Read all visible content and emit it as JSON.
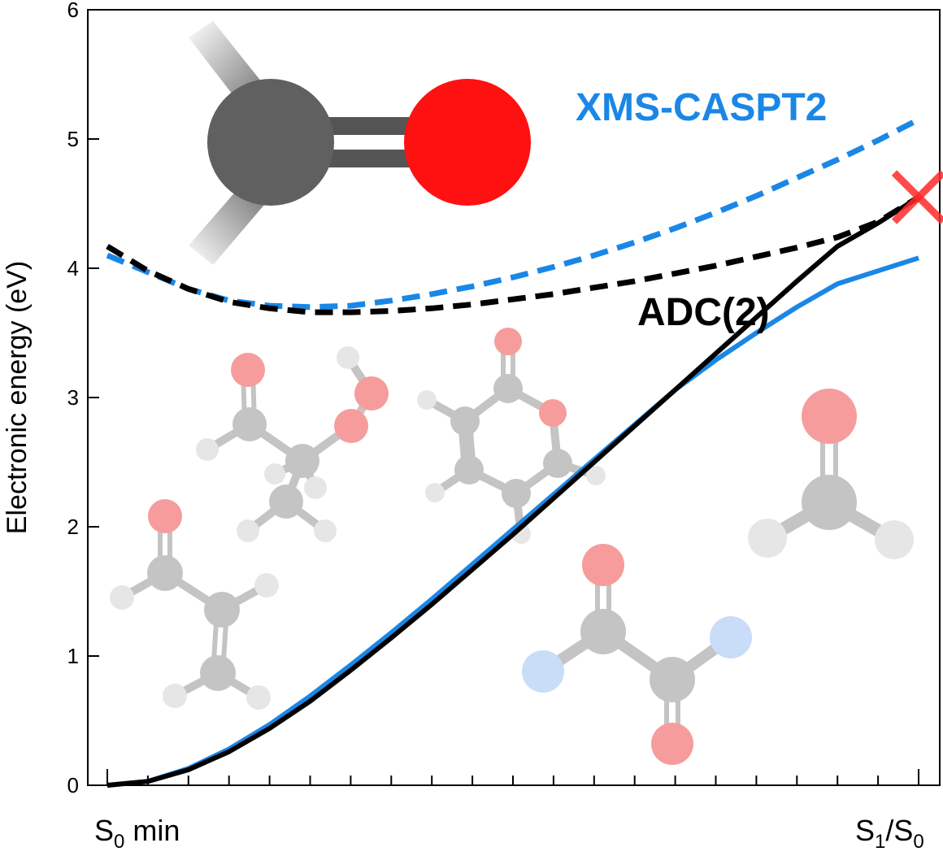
{
  "colors": {
    "xms": "#1a87e6",
    "adc": "#000000",
    "crossing": "#ff2a2a",
    "carbon_dark": "#5f5f5f",
    "oxygen_red": "#ff1111",
    "faded_carbon": "#c4c4c4",
    "faded_hydrogen": "#e6e6e6",
    "faded_oxygen": "#f69c9c",
    "faded_nitrogen": "#c9dcf8"
  },
  "chart_data": {
    "type": "line",
    "ylabel": "Electronic energy (eV)",
    "ylim": [
      0,
      6
    ],
    "yticks": [
      "0",
      "1",
      "2",
      "3",
      "4",
      "5",
      "6"
    ],
    "x_start_label": {
      "main": "S",
      "sub": "0",
      "rest": " min"
    },
    "x_end_label": {
      "a": "S",
      "a_sub": "1",
      "sep": "/",
      "b": "S",
      "b_sub": "0"
    },
    "xlim": [
      0,
      1
    ],
    "annotations": {
      "xms": "XMS-CASPT2",
      "adc": "ADC(2)"
    },
    "crossing_point": {
      "x": 1.0,
      "y": 4.55
    },
    "series": [
      {
        "name": "XMS-CASPT2",
        "style": "dashed",
        "color": "#1a87e6",
        "x": [
          0,
          0.05,
          0.1,
          0.15,
          0.2,
          0.25,
          0.3,
          0.35,
          0.4,
          0.45,
          0.5,
          0.55,
          0.6,
          0.65,
          0.7,
          0.75,
          0.8,
          0.85,
          0.9,
          0.95,
          1.0
        ],
        "y": [
          4.1,
          3.97,
          3.84,
          3.75,
          3.71,
          3.7,
          3.71,
          3.75,
          3.8,
          3.86,
          3.93,
          4.01,
          4.1,
          4.2,
          4.31,
          4.43,
          4.56,
          4.7,
          4.84,
          4.99,
          5.15
        ]
      },
      {
        "name": "ADC(2)",
        "style": "dashed",
        "color": "#000000",
        "x": [
          0,
          0.05,
          0.1,
          0.15,
          0.2,
          0.25,
          0.3,
          0.35,
          0.4,
          0.45,
          0.5,
          0.55,
          0.6,
          0.65,
          0.7,
          0.75,
          0.8,
          0.85,
          0.9,
          0.95,
          1.0
        ],
        "y": [
          4.17,
          3.98,
          3.84,
          3.74,
          3.69,
          3.66,
          3.66,
          3.67,
          3.69,
          3.72,
          3.76,
          3.8,
          3.85,
          3.9,
          3.96,
          4.02,
          4.09,
          4.16,
          4.24,
          4.36,
          4.55
        ]
      },
      {
        "name": "XMS-CASPT2",
        "style": "solid",
        "color": "#1a87e6",
        "x": [
          0,
          0.05,
          0.1,
          0.15,
          0.2,
          0.25,
          0.3,
          0.35,
          0.4,
          0.45,
          0.5,
          0.55,
          0.6,
          0.65,
          0.7,
          0.75,
          0.8,
          0.85,
          0.9,
          0.95,
          1.0
        ],
        "y": [
          0.0,
          0.03,
          0.13,
          0.28,
          0.47,
          0.69,
          0.93,
          1.18,
          1.44,
          1.71,
          1.98,
          2.25,
          2.52,
          2.79,
          3.06,
          3.29,
          3.5,
          3.7,
          3.88,
          3.98,
          4.08
        ]
      },
      {
        "name": "ADC(2)",
        "style": "solid",
        "color": "#000000",
        "x": [
          0,
          0.05,
          0.1,
          0.15,
          0.2,
          0.25,
          0.3,
          0.35,
          0.4,
          0.45,
          0.5,
          0.55,
          0.6,
          0.65,
          0.7,
          0.75,
          0.8,
          0.85,
          0.9,
          0.95,
          1.0
        ],
        "y": [
          0.0,
          0.03,
          0.12,
          0.26,
          0.44,
          0.65,
          0.89,
          1.14,
          1.4,
          1.67,
          1.94,
          2.22,
          2.5,
          2.78,
          3.06,
          3.34,
          3.62,
          3.9,
          4.17,
          4.35,
          4.55
        ]
      }
    ]
  }
}
